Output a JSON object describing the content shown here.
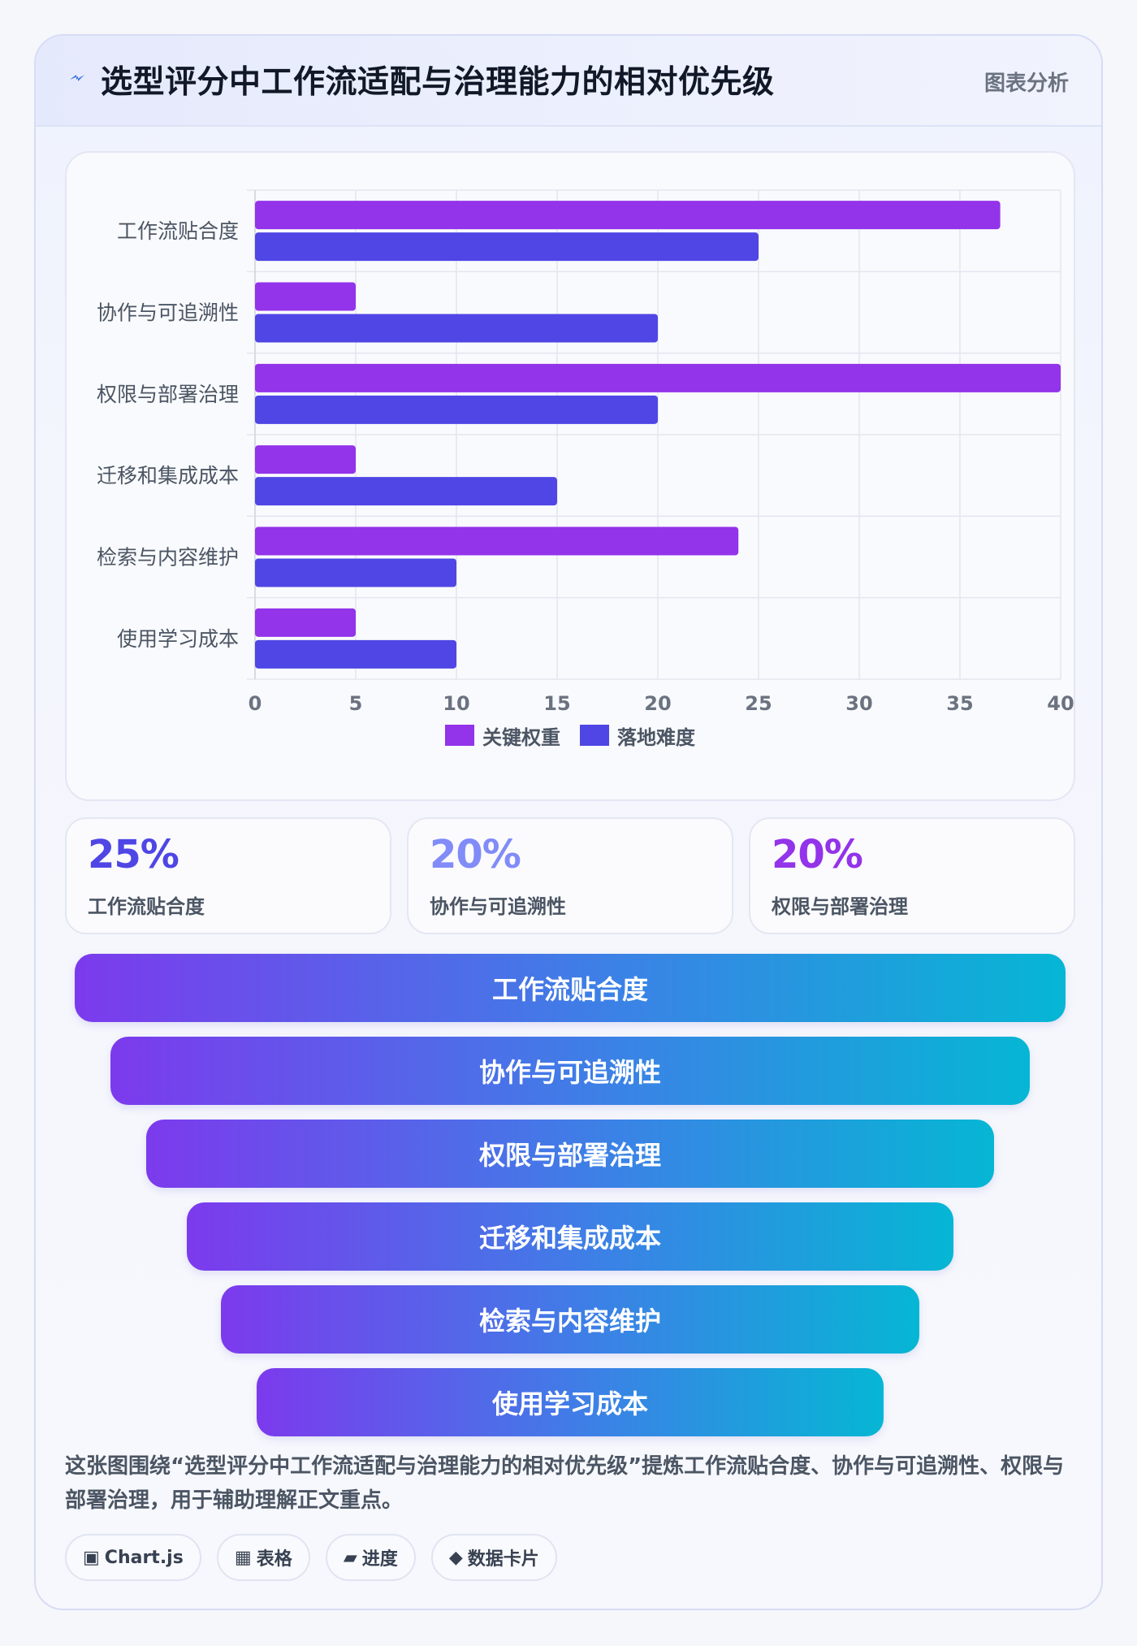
{
  "header": {
    "title": "选型评分中工作流适配与治理能力的相对优先级",
    "tag": "图表分析",
    "icon": "bolt-icon"
  },
  "chart_data": {
    "type": "bar",
    "orientation": "horizontal",
    "categories": [
      "工作流贴合度",
      "协作与可追溯性",
      "权限与部署治理",
      "迁移和集成成本",
      "检索与内容维护",
      "使用学习成本"
    ],
    "series": [
      {
        "name": "关键权重",
        "color": "#9333ea",
        "values": [
          37,
          5,
          40,
          5,
          24,
          5
        ]
      },
      {
        "name": "落地难度",
        "color": "#4f46e5",
        "values": [
          25,
          20,
          20,
          15,
          10,
          10
        ]
      }
    ],
    "xlim": [
      0,
      40
    ],
    "xticks": [
      0,
      5,
      10,
      15,
      20,
      25,
      30,
      35,
      40
    ],
    "grid": true,
    "legend": "bottom-center"
  },
  "stats": [
    {
      "value": "25%",
      "label": "工作流贴合度",
      "color": "#4f46e5"
    },
    {
      "value": "20%",
      "label": "协作与可追溯性",
      "color": "#818cf8"
    },
    {
      "value": "20%",
      "label": "权限与部署治理",
      "color": "#9333ea"
    }
  ],
  "funnel": [
    "工作流贴合度",
    "协作与可追溯性",
    "权限与部署治理",
    "迁移和集成成本",
    "检索与内容维护",
    "使用学习成本"
  ],
  "description": "这张图围绕“选型评分中工作流适配与治理能力的相对优先级”提炼工作流贴合度、协作与可追溯性、权限与部署治理，用于辅助理解正文重点。",
  "chips": [
    {
      "icon": "▣",
      "icon_name": "chart-icon",
      "label": "Chart.js"
    },
    {
      "icon": "▦",
      "icon_name": "table-icon",
      "label": "表格"
    },
    {
      "icon": "▰",
      "icon_name": "progress-icon",
      "label": "进度"
    },
    {
      "icon": "◆",
      "icon_name": "card-icon",
      "label": "数据卡片"
    }
  ]
}
